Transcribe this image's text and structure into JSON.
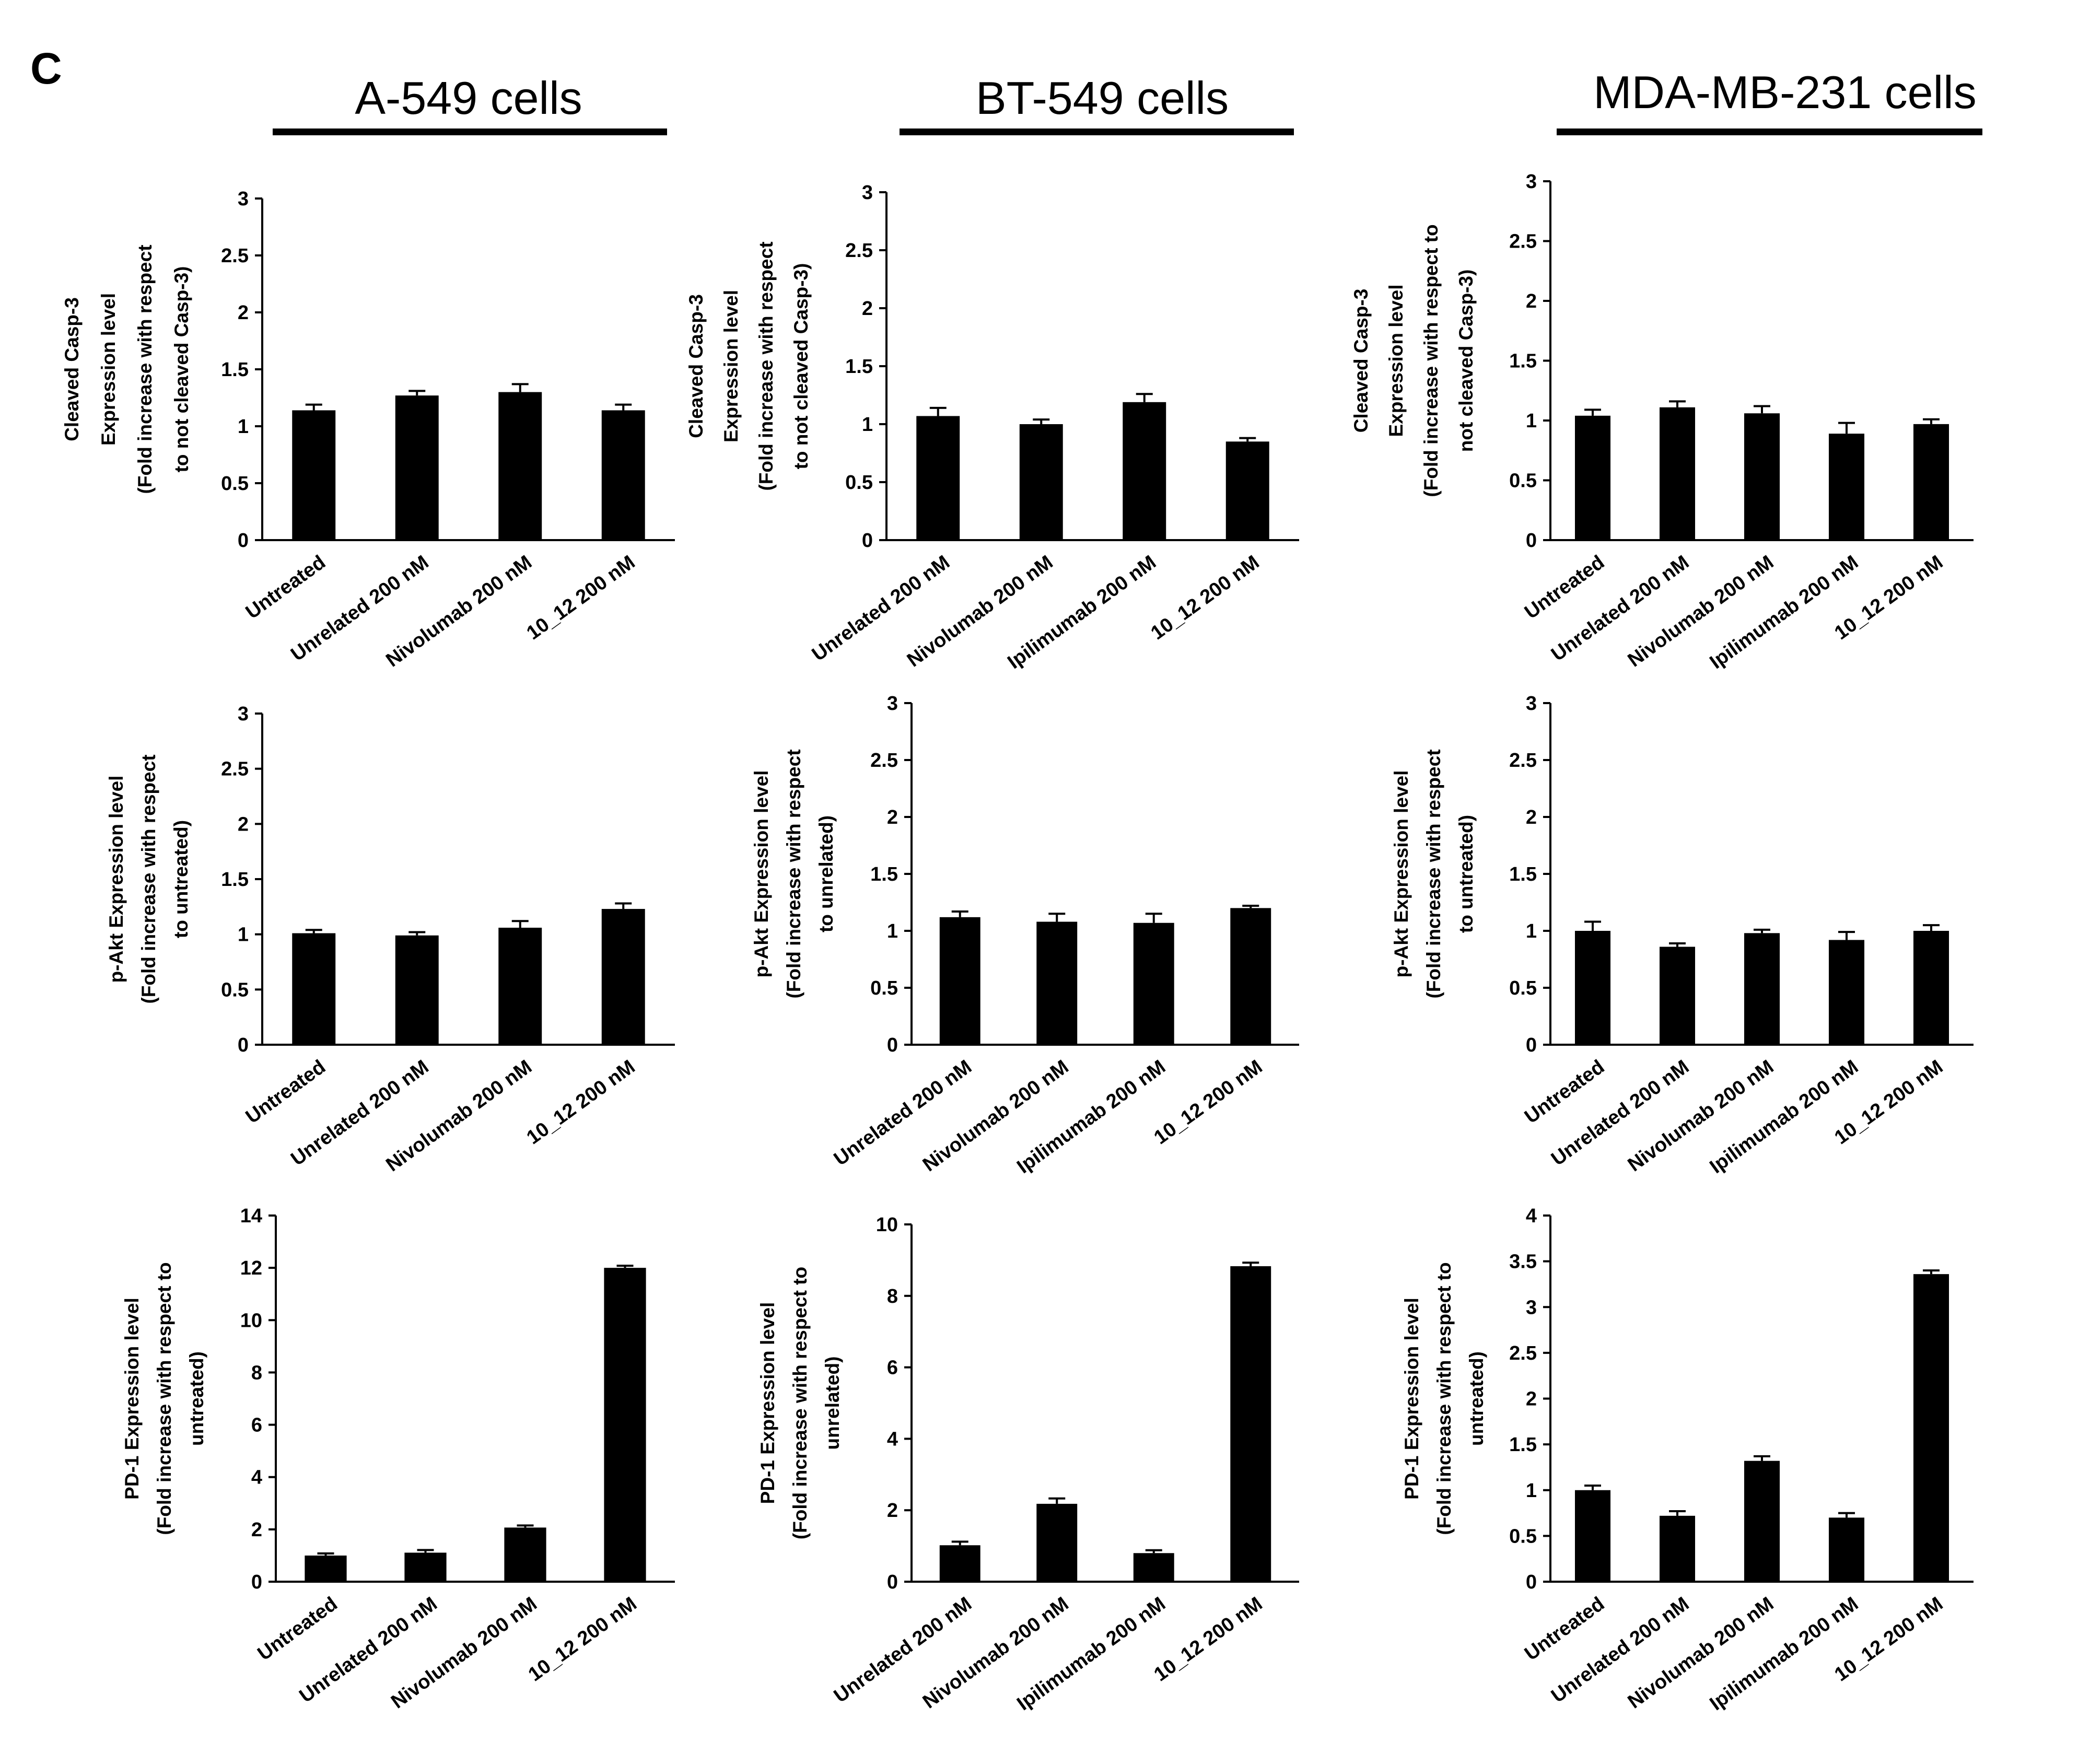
{
  "figure": {
    "panel_letter": "C",
    "columns": [
      "A-549 cells",
      "BT-549 cells",
      "MDA-MB-231 cells"
    ]
  },
  "chart_data": [
    {
      "type": "bar",
      "column": "A-549 cells",
      "row": 1,
      "ylabel": [
        "Cleaved Casp-3",
        "Expression level",
        "(Fold increase with respect",
        "to not cleaved Casp-3)"
      ],
      "categories": [
        "Untreated",
        "Unrelated 200 nM",
        "Nivolumab 200 nM",
        "10_12 200 nM"
      ],
      "values": [
        1.14,
        1.27,
        1.3,
        1.14
      ],
      "errors": [
        0.05,
        0.04,
        0.07,
        0.05
      ],
      "yticks": [
        0,
        0.5,
        1,
        1.5,
        2,
        2.5,
        3
      ],
      "ylim": [
        0,
        3
      ]
    },
    {
      "type": "bar",
      "column": "BT-549 cells",
      "row": 1,
      "ylabel": [
        "Cleaved Casp-3",
        "Expression level",
        "(Fold increase with respect",
        "to not cleaved Casp-3)"
      ],
      "categories": [
        "Unrelated 200 nM",
        "Nivolumab 200 nM",
        "Ipilimumab 200 nM",
        "10_12 200 nM"
      ],
      "values": [
        1.07,
        1.0,
        1.19,
        0.85
      ],
      "errors": [
        0.07,
        0.04,
        0.07,
        0.03
      ],
      "yticks": [
        0,
        0.5,
        1,
        1.5,
        2,
        2.5,
        3
      ],
      "ylim": [
        0,
        3
      ]
    },
    {
      "type": "bar",
      "column": "MDA-MB-231 cells",
      "row": 1,
      "ylabel": [
        "Cleaved Casp-3",
        "Expression level",
        "(Fold increase with respect to",
        "not cleaved Casp-3)"
      ],
      "categories": [
        "Untreated",
        "Unrelated 200 nM",
        "Nivolumab 200 nM",
        "Ipilimumab 200 nM",
        "10_12 200 nM"
      ],
      "values": [
        1.04,
        1.11,
        1.06,
        0.89,
        0.97
      ],
      "errors": [
        0.05,
        0.05,
        0.06,
        0.09,
        0.04
      ],
      "yticks": [
        0,
        0.5,
        1,
        1.5,
        2,
        2.5,
        3
      ],
      "ylim": [
        0,
        3
      ]
    },
    {
      "type": "bar",
      "column": "A-549 cells",
      "row": 2,
      "ylabel": [
        "p-Akt Expression level",
        "(Fold increase with respect",
        "to untreated)"
      ],
      "categories": [
        "Untreated",
        "Unrelated 200 nM",
        "Nivolumab 200 nM",
        "10_12 200 nM"
      ],
      "values": [
        1.01,
        0.99,
        1.06,
        1.23
      ],
      "errors": [
        0.03,
        0.03,
        0.06,
        0.05
      ],
      "yticks": [
        0,
        0.5,
        1,
        1.5,
        2,
        2.5,
        3
      ],
      "ylim": [
        0,
        3
      ]
    },
    {
      "type": "bar",
      "column": "BT-549 cells",
      "row": 2,
      "ylabel": [
        "p-Akt Expression level",
        "(Fold increase with respect",
        "to unrelated)"
      ],
      "categories": [
        "Unrelated 200 nM",
        "Nivolumab 200 nM",
        "Ipilimumab 200 nM",
        "10_12 200 nM"
      ],
      "values": [
        1.12,
        1.08,
        1.07,
        1.2
      ],
      "errors": [
        0.05,
        0.07,
        0.08,
        0.02
      ],
      "yticks": [
        0,
        0.5,
        1,
        1.5,
        2,
        2.5,
        3
      ],
      "ylim": [
        0,
        3
      ]
    },
    {
      "type": "bar",
      "column": "MDA-MB-231 cells",
      "row": 2,
      "ylabel": [
        "p-Akt Expression level",
        "(Fold increase with respect",
        "to  untreated)"
      ],
      "categories": [
        "Untreated",
        "Unrelated 200 nM",
        "Nivolumab 200 nM",
        "Ipilimumab 200 nM",
        "10_12 200 nM"
      ],
      "values": [
        1.0,
        0.86,
        0.98,
        0.92,
        1.0
      ],
      "errors": [
        0.08,
        0.03,
        0.03,
        0.07,
        0.05
      ],
      "yticks": [
        0,
        0.5,
        1,
        1.5,
        2,
        2.5,
        3
      ],
      "ylim": [
        0,
        3
      ]
    },
    {
      "type": "bar",
      "column": "A-549 cells",
      "row": 3,
      "ylabel": [
        "PD-1 Expression level",
        "(Fold increase with respect to",
        "untreated)"
      ],
      "categories": [
        "Untreated",
        "Unrelated 200 nM",
        "Nivolumab 200 nM",
        "10_12 200 nM"
      ],
      "values": [
        1.0,
        1.11,
        2.07,
        12.0
      ],
      "errors": [
        0.08,
        0.1,
        0.08,
        0.08
      ],
      "yticks": [
        0,
        2,
        4,
        6,
        8,
        10,
        12,
        14
      ],
      "ylim": [
        0,
        14
      ]
    },
    {
      "type": "bar",
      "column": "BT-549 cells",
      "row": 3,
      "ylabel": [
        "PD-1 Expression level",
        "(Fold increase with respect to",
        "unrelated)"
      ],
      "categories": [
        "Unrelated 200 nM",
        "Nivolumab 200 nM",
        "Ipilimumab 200 nM",
        "10_12 200 nM"
      ],
      "values": [
        1.02,
        2.18,
        0.8,
        8.83
      ],
      "errors": [
        0.1,
        0.15,
        0.08,
        0.1
      ],
      "yticks": [
        0,
        2,
        4,
        6,
        8,
        10
      ],
      "ylim": [
        0,
        10
      ]
    },
    {
      "type": "bar",
      "column": "MDA-MB-231 cells",
      "row": 3,
      "ylabel": [
        "PD-1 Expression level",
        "(Fold increase with respect to",
        "untreated)"
      ],
      "categories": [
        "Untreated",
        "Unrelated 200 nM",
        "Nivolumab 200 nM",
        "Ipilimumab 200 nM",
        "10_12 200 nM"
      ],
      "values": [
        1.0,
        0.72,
        1.32,
        0.7,
        3.36
      ],
      "errors": [
        0.05,
        0.05,
        0.05,
        0.05,
        0.04
      ],
      "yticks": [
        0,
        0.5,
        1,
        1.5,
        2,
        2.5,
        3,
        3.5,
        4
      ],
      "ylim": [
        0,
        4
      ]
    }
  ]
}
